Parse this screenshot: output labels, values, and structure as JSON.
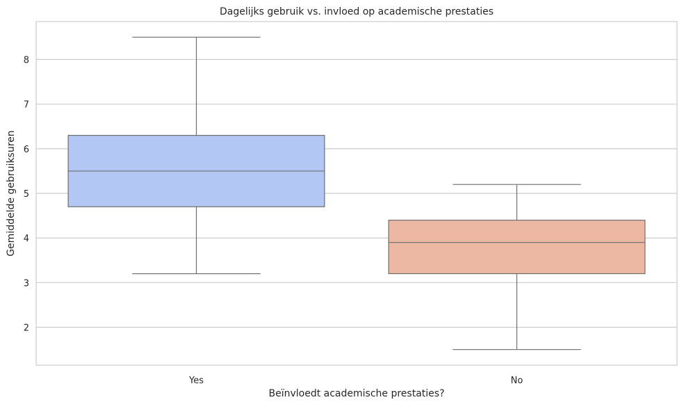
{
  "chart_data": {
    "type": "box",
    "title": "Dagelijks gebruik vs. invloed op academische prestaties",
    "xlabel": "Beïnvloedt academische prestaties?",
    "ylabel": "Gemiddelde gebruiksuren",
    "categories": [
      "Yes",
      "No"
    ],
    "boxes": [
      {
        "category": "Yes",
        "whisker_low": 3.2,
        "q1": 4.7,
        "median": 5.5,
        "q3": 6.3,
        "whisker_high": 8.5,
        "color": "#b3c7f4"
      },
      {
        "category": "No",
        "whisker_low": 1.5,
        "q1": 3.2,
        "median": 3.9,
        "q3": 4.4,
        "whisker_high": 5.2,
        "color": "#ebb9a3"
      }
    ],
    "ylim": [
      1.15,
      8.85
    ],
    "yticks": [
      2,
      3,
      4,
      5,
      6,
      7,
      8
    ],
    "grid": true,
    "colors": {
      "grid": "#cccccc",
      "box_edge": "#6e6e6e",
      "axes_frame": "#cccccc"
    }
  }
}
